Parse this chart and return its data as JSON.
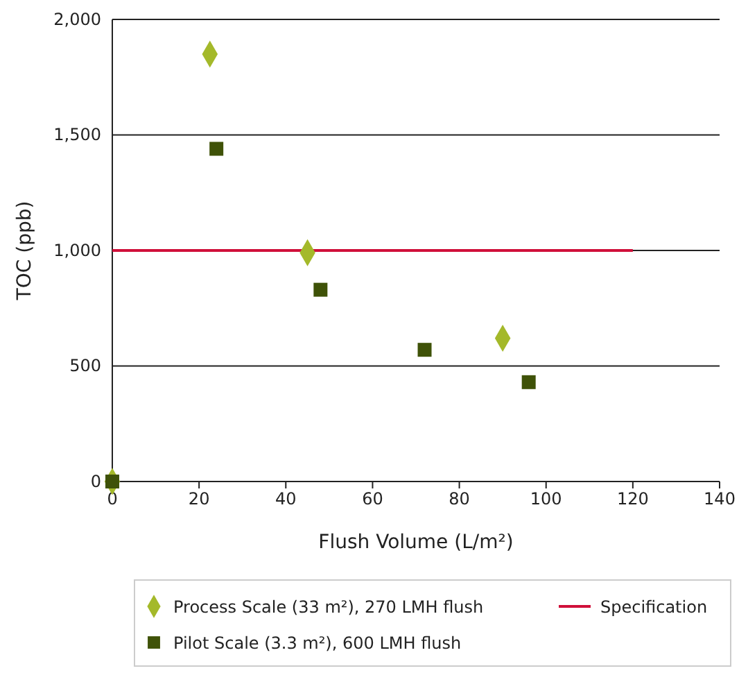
{
  "chart_data": {
    "type": "scatter",
    "xlabel": "Flush Volume (L/m²)",
    "ylabel": "TOC (ppb)",
    "xlim": [
      0,
      140
    ],
    "xticks": [
      0,
      20,
      40,
      60,
      80,
      100,
      120,
      140
    ],
    "ylim": [
      0,
      2000
    ],
    "yticks": [
      {
        "value": 0,
        "label": "0"
      },
      {
        "value": 500,
        "label": "500"
      },
      {
        "value": 1000,
        "label": "1,000"
      },
      {
        "value": 1500,
        "label": "1,500"
      },
      {
        "value": 2000,
        "label": "2,000"
      }
    ],
    "grid": "y",
    "legend": "bottom",
    "series": [
      {
        "name": "Process Scale (33 m²), 270 LMH flush",
        "color": "#a4b92a",
        "marker": "diamond",
        "x": [
          0,
          22.5,
          45,
          90
        ],
        "values": [
          0,
          1850,
          990,
          620
        ]
      },
      {
        "name": "Pilot Scale (3.3 m²), 600 LMH flush",
        "color": "#3f5208",
        "marker": "square",
        "x": [
          0,
          24,
          48,
          72,
          96
        ],
        "values": [
          0,
          1440,
          830,
          570,
          430
        ]
      },
      {
        "name": "Specification",
        "type": "line",
        "color": "#d0103a",
        "marker": "none",
        "x": [
          0,
          120
        ],
        "values": [
          1000,
          1000
        ]
      }
    ]
  }
}
